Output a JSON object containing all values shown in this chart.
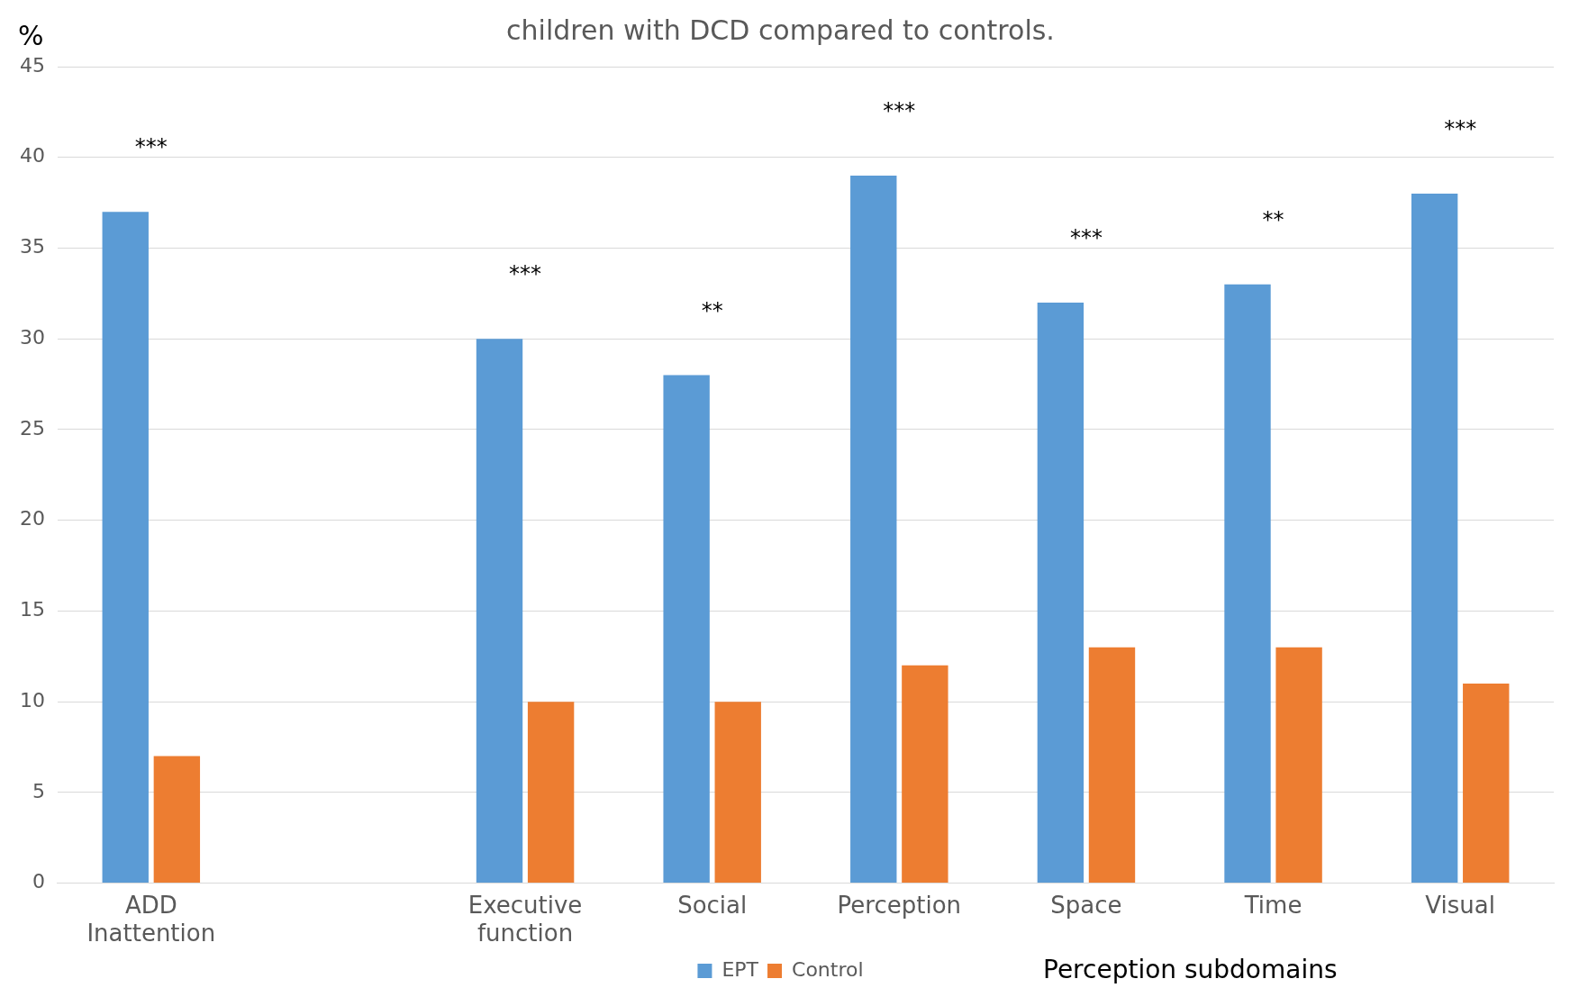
{
  "chart_data": {
    "type": "bar",
    "title": "children with DCD compared to controls.",
    "ylabel": "%",
    "categories": [
      "ADD Inattention",
      null,
      "Executive function",
      "Social",
      "Perception",
      "Space",
      "Time",
      "Visual"
    ],
    "series": [
      {
        "name": "EPT",
        "color": "#5b9bd5",
        "values": [
          37,
          null,
          30,
          28,
          39,
          32,
          33,
          38
        ]
      },
      {
        "name": "Control",
        "color": "#ed7d31",
        "values": [
          7,
          null,
          10,
          10,
          12,
          13,
          13,
          11
        ]
      }
    ],
    "ylim": [
      0,
      45
    ],
    "yticks": [
      0,
      5,
      10,
      15,
      20,
      25,
      30,
      35,
      40,
      45
    ],
    "grid": "y",
    "legend": "bottom",
    "annotations": [
      {
        "text": "***",
        "x": "ADD Inattention",
        "y": 37
      },
      {
        "text": "***",
        "x": "Executive function",
        "y": 30
      },
      {
        "text": "**",
        "x": "Social",
        "y": 28
      },
      {
        "text": "***",
        "x": "Perception",
        "y": 39
      },
      {
        "text": "***",
        "x": "Space",
        "y": 32
      },
      {
        "text": "**",
        "x": "Time",
        "y": 33
      },
      {
        "text": "***",
        "x": "Visual",
        "y": 38
      },
      "Perception subdomains"
    ]
  }
}
